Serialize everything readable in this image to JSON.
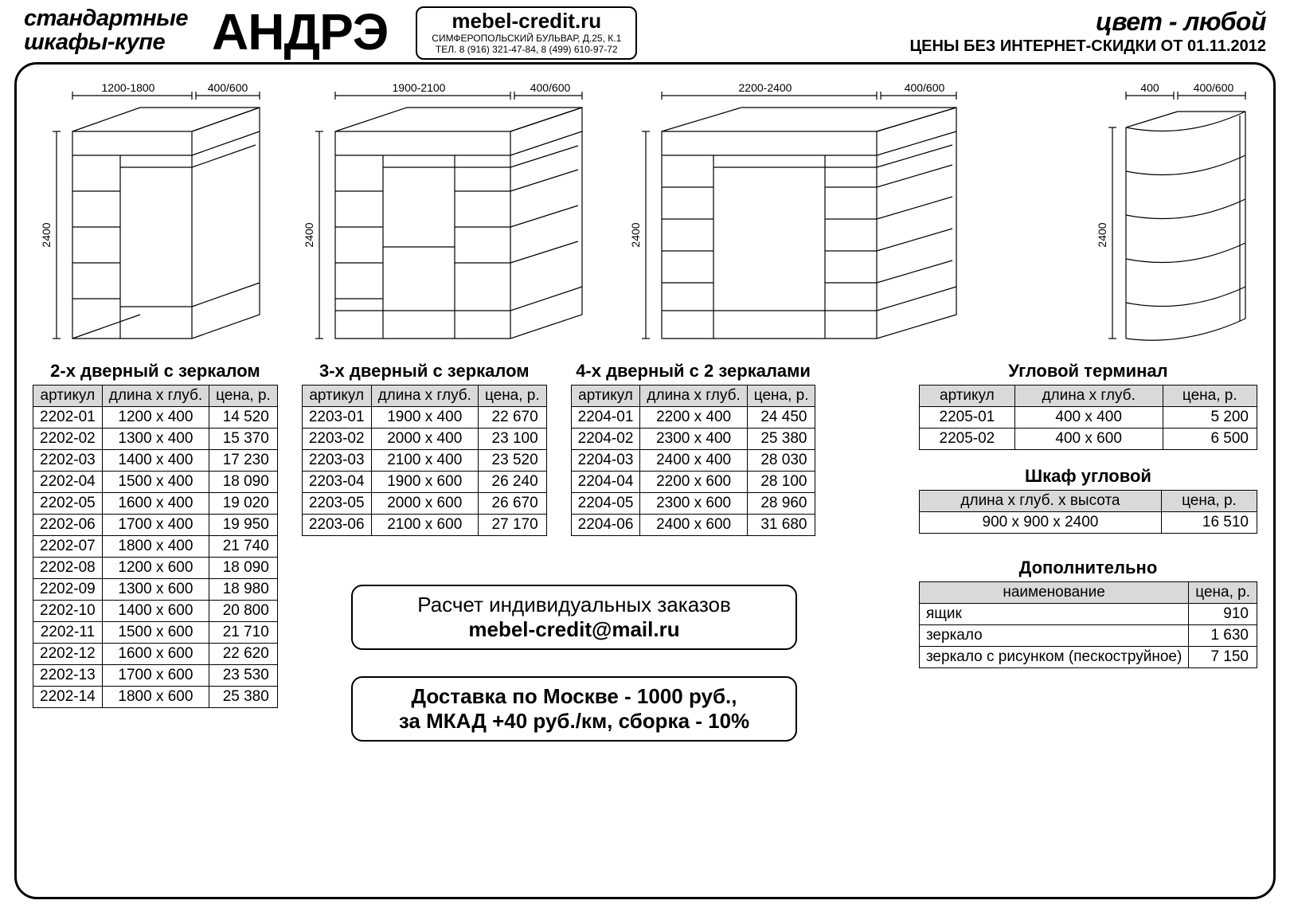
{
  "header": {
    "left_line1": "стандартные",
    "left_line2": "шкафы-купе",
    "brand": "АНДРЭ",
    "site_url": "mebel-credit.ru",
    "site_addr": "СИМФЕРОПОЛЬСКИЙ БУЛЬВАР, Д.25, К.1",
    "site_tel": "ТЕЛ. 8 (916) 321-47-84, 8 (499) 610-97-72",
    "color_any": "цвет - любой",
    "price_date": "ЦЕНЫ БЕЗ ИНТЕРНЕТ-СКИДКИ ОТ 01.11.2012"
  },
  "dims": {
    "w2": "1200-1800",
    "d2": "400/600",
    "w3": "1900-2100",
    "d3": "400/600",
    "w4": "2200-2400",
    "d4": "400/600",
    "wc": "400",
    "dc": "400/600",
    "h": "2400"
  },
  "columns": {
    "art": "артикул",
    "size": "длина х глуб.",
    "price": "цена, р."
  },
  "t2": {
    "title": "2-х дверный с зеркалом",
    "rows": [
      [
        "2202-01",
        "1200 х 400",
        "14 520"
      ],
      [
        "2202-02",
        "1300 х 400",
        "15 370"
      ],
      [
        "2202-03",
        "1400 х 400",
        "17 230"
      ],
      [
        "2202-04",
        "1500 х 400",
        "18 090"
      ],
      [
        "2202-05",
        "1600 х 400",
        "19 020"
      ],
      [
        "2202-06",
        "1700 х 400",
        "19 950"
      ],
      [
        "2202-07",
        "1800 х 400",
        "21 740"
      ],
      [
        "2202-08",
        "1200 х 600",
        "18 090"
      ],
      [
        "2202-09",
        "1300 х 600",
        "18 980"
      ],
      [
        "2202-10",
        "1400 х 600",
        "20 800"
      ],
      [
        "2202-11",
        "1500 х 600",
        "21 710"
      ],
      [
        "2202-12",
        "1600 х 600",
        "22 620"
      ],
      [
        "2202-13",
        "1700 х 600",
        "23 530"
      ],
      [
        "2202-14",
        "1800 х 600",
        "25 380"
      ]
    ]
  },
  "t3": {
    "title": "3-х дверный с зеркалом",
    "rows": [
      [
        "2203-01",
        "1900 х 400",
        "22 670"
      ],
      [
        "2203-02",
        "2000 х 400",
        "23 100"
      ],
      [
        "2203-03",
        "2100 х 400",
        "23 520"
      ],
      [
        "2203-04",
        "1900 х 600",
        "26 240"
      ],
      [
        "2203-05",
        "2000 х 600",
        "26 670"
      ],
      [
        "2203-06",
        "2100 х 600",
        "27 170"
      ]
    ]
  },
  "t4": {
    "title": "4-х дверный с 2 зеркалами",
    "rows": [
      [
        "2204-01",
        "2200 х 400",
        "24 450"
      ],
      [
        "2204-02",
        "2300 х 400",
        "25 380"
      ],
      [
        "2204-03",
        "2400 х 400",
        "28 030"
      ],
      [
        "2204-04",
        "2200 х 600",
        "28 100"
      ],
      [
        "2204-05",
        "2300 х 600",
        "28 960"
      ],
      [
        "2204-06",
        "2400 х 600",
        "31 680"
      ]
    ]
  },
  "t5": {
    "title": "Угловой терминал",
    "rows": [
      [
        "2205-01",
        "400 х 400",
        "5 200"
      ],
      [
        "2205-02",
        "400 х 600",
        "6 500"
      ]
    ]
  },
  "t6": {
    "title": "Шкаф угловой",
    "col_size": "длина х глуб. х высота",
    "col_price": "цена, р.",
    "rows": [
      [
        "900 х 900 х 2400",
        "16 510"
      ]
    ]
  },
  "t7": {
    "title": "Дополнительно",
    "col_name": "наименование",
    "col_price": "цена, р.",
    "rows": [
      [
        "ящик",
        "910"
      ],
      [
        "зеркало",
        "1 630"
      ],
      [
        "зеркало с рисунком (пескоструйное)",
        "7 150"
      ]
    ]
  },
  "box1": {
    "line1": "Расчет индивидуальных заказов",
    "line2": "mebel-credit@mail.ru"
  },
  "box2": {
    "line1": "Доставка по Москве - 1000 руб.,",
    "line2": "за МКАД +40 руб./км, сборка - 10%"
  },
  "style": {
    "bg": "#ffffff",
    "fg": "#000000",
    "th_bg": "#d9d9d9",
    "border_w": 1,
    "frame_radius": 28
  }
}
